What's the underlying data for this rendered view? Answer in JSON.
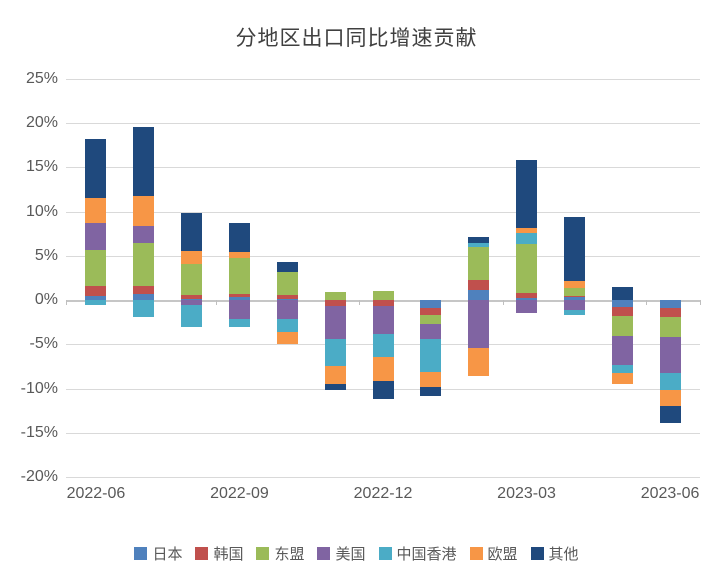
{
  "title": "分地区出口同比增速贡献",
  "chart_data": {
    "type": "bar",
    "stacked": true,
    "title": "分地区出口同比增速贡献",
    "xlabel": "",
    "ylabel": "",
    "ylim": [
      -20,
      25
    ],
    "grid": true,
    "legend_position": "bottom",
    "y_ticks": [
      {
        "v": 25,
        "label": "25%"
      },
      {
        "v": 20,
        "label": "20%"
      },
      {
        "v": 15,
        "label": "15%"
      },
      {
        "v": 10,
        "label": "10%"
      },
      {
        "v": 5,
        "label": "5%"
      },
      {
        "v": 0,
        "label": "0%"
      },
      {
        "v": -5,
        "label": "-5%"
      },
      {
        "v": -10,
        "label": "-10%"
      },
      {
        "v": -15,
        "label": "-15%"
      },
      {
        "v": -20,
        "label": "-20%"
      }
    ],
    "categories": [
      "2022-06",
      "2022-07",
      "2022-08",
      "2022-09",
      "2022-10",
      "2022-11",
      "2022-12",
      "2023-01",
      "2023-02",
      "2023-03",
      "2023-04",
      "2023-05",
      "2023-06"
    ],
    "x_tick_labels": [
      "2022-06",
      "2022-09",
      "2022-12",
      "2023-03",
      "2023-06"
    ],
    "series": [
      {
        "name": "日本",
        "color": "#4F81BD",
        "values": [
          0.4,
          0.7,
          0.1,
          0.3,
          0.15,
          0,
          0,
          -0.85,
          1.1,
          0.2,
          0.3,
          -0.75,
          -0.85
        ]
      },
      {
        "name": "韩国",
        "color": "#C0504D",
        "values": [
          1.2,
          0.9,
          0.5,
          0.4,
          0.4,
          -0.7,
          -0.7,
          -0.9,
          1.2,
          0.55,
          0.2,
          -1.1,
          -1.05
        ]
      },
      {
        "name": "东盟",
        "color": "#9BBB59",
        "values": [
          4.1,
          4.8,
          3.5,
          4.0,
          2.6,
          0.85,
          1.05,
          -0.95,
          3.7,
          5.6,
          0.85,
          -2.25,
          -2.3
        ]
      },
      {
        "name": "美国",
        "color": "#8064A2",
        "values": [
          3.0,
          2.0,
          -0.6,
          -2.1,
          -2.2,
          -3.75,
          -3.1,
          -1.7,
          -5.45,
          -1.5,
          -1.1,
          -3.2,
          -4.05
        ]
      },
      {
        "name": "中国香港",
        "color": "#4BACC6",
        "values": [
          -0.6,
          -1.9,
          -2.4,
          -1.0,
          -1.4,
          -3.0,
          -2.6,
          -3.7,
          0.45,
          1.2,
          -0.6,
          -1.0,
          -1.9
        ]
      },
      {
        "name": "欧盟",
        "color": "#F79646",
        "values": [
          2.8,
          3.3,
          1.4,
          0.7,
          -1.4,
          -2.0,
          -2.7,
          -1.7,
          -3.1,
          0.6,
          0.8,
          -1.15,
          -1.8
        ]
      },
      {
        "name": "其他",
        "color": "#1F497D",
        "values": [
          6.7,
          7.9,
          4.3,
          3.3,
          1.2,
          -0.7,
          -2.1,
          -1.0,
          0.7,
          7.7,
          7.2,
          1.5,
          -1.9
        ]
      }
    ]
  }
}
